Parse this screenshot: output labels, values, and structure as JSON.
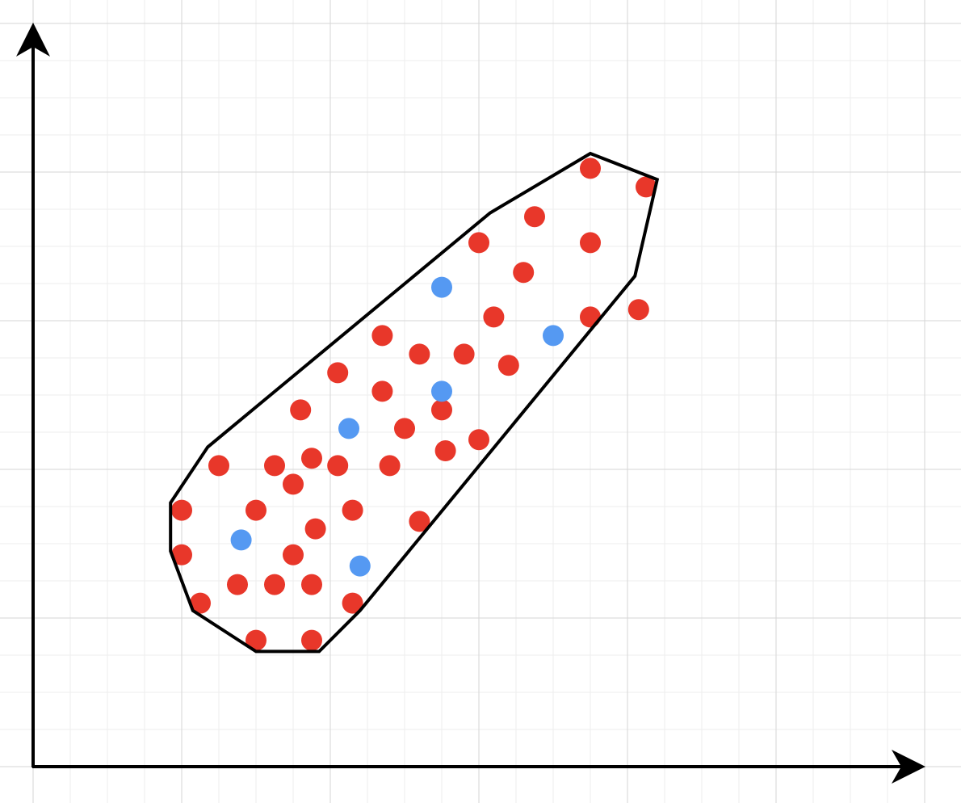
{
  "colors": {
    "background": "#ffffff",
    "grid_major": "#d6d6d6",
    "grid_minor": "#eeeeee",
    "axis": "#000000",
    "hull_stroke": "#000000",
    "red": "#e8372a",
    "blue": "#5599f2"
  },
  "diagram": {
    "kind": "scatter-with-convex-hull",
    "axes": {
      "x_arrow": true,
      "y_arrow": true,
      "tick_labels": false,
      "axis_titles": false
    },
    "grid": true,
    "legend": false
  },
  "chart_data": {
    "type": "scatter",
    "title": "",
    "xlabel": "",
    "ylabel": "",
    "grid": true,
    "xlim": [
      0,
      24
    ],
    "ylim": [
      0,
      20
    ],
    "series": [
      {
        "color": "#e8372a",
        "points": [
          [
            15,
            16.1
          ],
          [
            16.5,
            15.6
          ],
          [
            13.5,
            14.8
          ],
          [
            12,
            14.1
          ],
          [
            15,
            14.1
          ],
          [
            13.2,
            13.3
          ],
          [
            16.3,
            12.3
          ],
          [
            12.4,
            12.1
          ],
          [
            15,
            12.1
          ],
          [
            9.4,
            11.6
          ],
          [
            10.4,
            11.1
          ],
          [
            11.6,
            11.1
          ],
          [
            12.8,
            10.8
          ],
          [
            8.2,
            10.6
          ],
          [
            9.4,
            10.1
          ],
          [
            11,
            9.6
          ],
          [
            7.2,
            9.6
          ],
          [
            10,
            9.1
          ],
          [
            12,
            8.8
          ],
          [
            11.1,
            8.5
          ],
          [
            7.5,
            8.3
          ],
          [
            5,
            8.1
          ],
          [
            6.5,
            8.1
          ],
          [
            8.2,
            8.1
          ],
          [
            9.6,
            8.1
          ],
          [
            7,
            7.6
          ],
          [
            4,
            6.9
          ],
          [
            6,
            6.9
          ],
          [
            8.6,
            6.9
          ],
          [
            10.4,
            6.6
          ],
          [
            7.6,
            6.4
          ],
          [
            4,
            5.7
          ],
          [
            7,
            5.7
          ],
          [
            5.5,
            4.9
          ],
          [
            6.5,
            4.9
          ],
          [
            7.5,
            4.9
          ],
          [
            4.5,
            4.4
          ],
          [
            8.6,
            4.4
          ],
          [
            6,
            3.4
          ],
          [
            7.5,
            3.4
          ]
        ]
      },
      {
        "color": "#5599f2",
        "points": [
          [
            11,
            12.9
          ],
          [
            14,
            11.6
          ],
          [
            11,
            10.1
          ],
          [
            8.5,
            9.1
          ],
          [
            5.6,
            6.1
          ],
          [
            8.8,
            5.4
          ]
        ]
      }
    ],
    "hull": [
      [
        15,
        16.5
      ],
      [
        16.8,
        15.8
      ],
      [
        16.2,
        13.2
      ],
      [
        8.8,
        4.2
      ],
      [
        7.7,
        3.1
      ],
      [
        6,
        3.1
      ],
      [
        4.3,
        4.2
      ],
      [
        3.7,
        5.8
      ],
      [
        3.7,
        7.1
      ],
      [
        4.7,
        8.6
      ],
      [
        12.3,
        14.9
      ]
    ]
  }
}
